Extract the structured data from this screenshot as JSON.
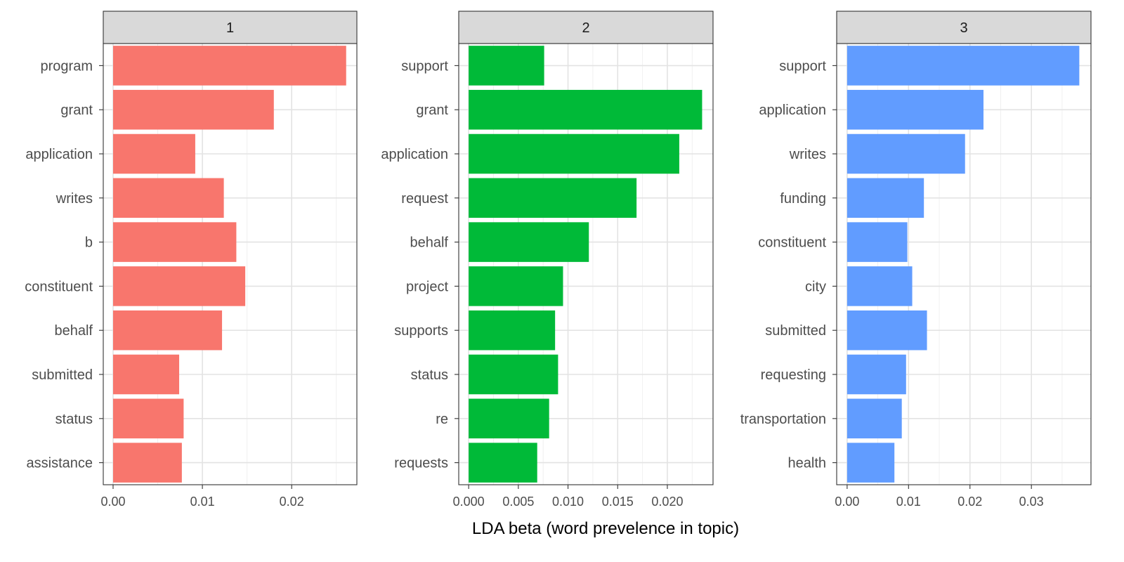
{
  "chart_data": {
    "type": "bar",
    "orientation": "horizontal",
    "xlabel": "LDA beta (word prevelence in topic)",
    "grid": true,
    "panels": [
      {
        "strip": "1",
        "color": "#F8766D",
        "xlim": [
          -0.0011,
          0.0273
        ],
        "ticks": [
          0,
          0.01,
          0.02
        ],
        "tick_labels": [
          "0.00",
          "0.01",
          "0.02"
        ],
        "categories": [
          "program",
          "grant",
          "application",
          "writes",
          "b",
          "constituent",
          "behalf",
          "submitted",
          "status",
          "assistance"
        ],
        "values": [
          0.0261,
          0.018,
          0.0092,
          0.0124,
          0.0138,
          0.0148,
          0.0122,
          0.0074,
          0.0079,
          0.0077
        ]
      },
      {
        "strip": "2",
        "color": "#00BA38",
        "xlim": [
          -0.001,
          0.0246
        ],
        "ticks": [
          0,
          0.005,
          0.01,
          0.015,
          0.02
        ],
        "tick_labels": [
          "0.000",
          "0.005",
          "0.010",
          "0.015",
          "0.020"
        ],
        "categories": [
          "support",
          "grant",
          "application",
          "request",
          "behalf",
          "project",
          "supports",
          "status",
          "re",
          "requests"
        ],
        "values": [
          0.0076,
          0.0235,
          0.0212,
          0.0169,
          0.0121,
          0.0095,
          0.0087,
          0.009,
          0.0081,
          0.0069
        ]
      },
      {
        "strip": "3",
        "color": "#619CFF",
        "xlim": [
          -0.0017,
          0.0397
        ],
        "ticks": [
          0,
          0.01,
          0.02,
          0.03
        ],
        "tick_labels": [
          "0.00",
          "0.01",
          "0.02",
          "0.03"
        ],
        "categories": [
          "support",
          "application",
          "writes",
          "funding",
          "constituent",
          "city",
          "submitted",
          "requesting",
          "transportation",
          "health"
        ],
        "values": [
          0.0378,
          0.0222,
          0.0192,
          0.0125,
          0.0098,
          0.0106,
          0.013,
          0.0096,
          0.0089,
          0.0077
        ]
      }
    ]
  }
}
